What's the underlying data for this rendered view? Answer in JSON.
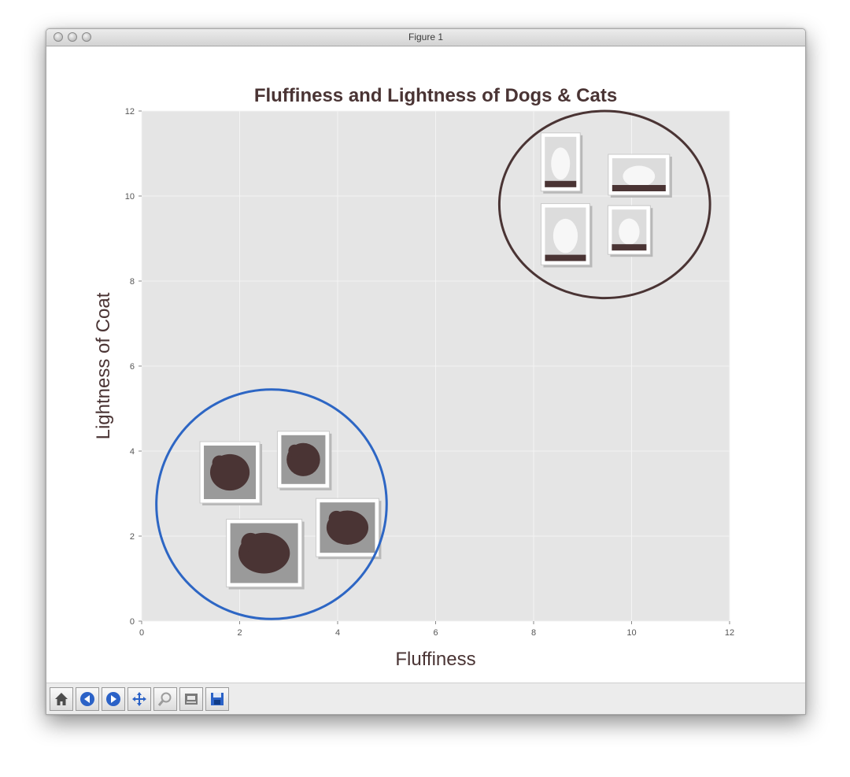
{
  "window": {
    "title": "Figure 1"
  },
  "toolbar": {
    "buttons": [
      {
        "icon": "home-icon"
      },
      {
        "icon": "back-arrow-icon"
      },
      {
        "icon": "forward-arrow-icon"
      },
      {
        "icon": "pan-icon"
      },
      {
        "icon": "zoom-icon"
      },
      {
        "icon": "subplots-icon"
      },
      {
        "icon": "save-icon"
      }
    ]
  },
  "chart_data": {
    "type": "scatter",
    "title": "Fluffiness and Lightness of Dogs & Cats",
    "xlabel": "Fluffiness",
    "ylabel": "Lightness of Coat",
    "xlim": [
      0,
      12
    ],
    "ylim": [
      0,
      12
    ],
    "xticks": [
      0,
      2,
      4,
      6,
      8,
      10,
      12
    ],
    "yticks": [
      0,
      2,
      4,
      6,
      8,
      10,
      12
    ],
    "grid": true,
    "background": "#e5e5e5",
    "series": [
      {
        "kind": "cat photos",
        "color": "#4a3434",
        "points": [
          {
            "x": 8.55,
            "y": 10.8
          },
          {
            "x": 10.15,
            "y": 10.5
          },
          {
            "x": 8.65,
            "y": 9.1
          },
          {
            "x": 9.95,
            "y": 9.2
          }
        ],
        "circle": {
          "cx": 9.45,
          "cy": 9.8,
          "rx": 2.15,
          "ry": 2.2,
          "color": "#4a3434"
        }
      },
      {
        "kind": "dog photos",
        "color": "#4a3434",
        "points": [
          {
            "x": 1.8,
            "y": 3.5
          },
          {
            "x": 3.3,
            "y": 3.8
          },
          {
            "x": 4.2,
            "y": 2.2
          },
          {
            "x": 2.5,
            "y": 1.6
          }
        ],
        "circle": {
          "cx": 2.65,
          "cy": 2.75,
          "rx": 2.35,
          "ry": 2.7,
          "color": "#2d66c4"
        }
      }
    ]
  }
}
